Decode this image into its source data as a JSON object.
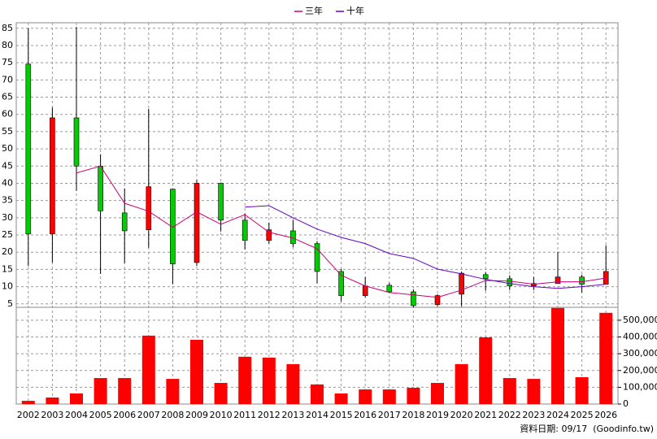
{
  "chart_data": {
    "type": "candlestick",
    "categories": [
      "2002",
      "2003",
      "2004",
      "2005",
      "2006",
      "2007",
      "2008",
      "2009",
      "2010",
      "2011",
      "2012",
      "2013",
      "2014",
      "2015",
      "2016",
      "2017",
      "2018",
      "2019",
      "2020",
      "2021",
      "2022",
      "2023",
      "2024",
      "2025",
      "2026"
    ],
    "open": [
      74.6,
      25.3,
      59,
      45,
      31.4,
      26.5,
      38.3,
      17,
      40,
      29.3,
      23.4,
      26.2,
      22.5,
      14.4,
      7.4,
      10.4,
      8.5,
      4.8,
      7.8,
      13.5,
      12.3,
      10.2,
      10.9,
      12.8,
      10.7
    ],
    "high": [
      85,
      62,
      85.4,
      48.4,
      38.5,
      61.6,
      38.5,
      41,
      40.2,
      31.2,
      28.6,
      29.3,
      23.2,
      15.1,
      12.8,
      11.1,
      9.2,
      7.8,
      14.4,
      14.2,
      13.3,
      12.8,
      20.1,
      13.5,
      22
    ],
    "low": [
      16,
      17,
      37.8,
      13.7,
      16.8,
      21.3,
      10.7,
      16,
      26,
      20.8,
      22.5,
      21.5,
      10.9,
      5.7,
      6.9,
      8.3,
      4,
      4.3,
      4.3,
      8.8,
      9,
      9,
      10.9,
      8.3,
      10.7
    ],
    "close": [
      25.3,
      59,
      45,
      32,
      26.2,
      39,
      16.6,
      40,
      29.3,
      23.4,
      26.5,
      22.5,
      14.4,
      7.4,
      10.2,
      8.5,
      4.5,
      7.4,
      13.9,
      12.3,
      10.2,
      10.9,
      12.8,
      10.7,
      14.4
    ],
    "up_color": "#ff0000",
    "down_color": "#00cc00",
    "series": [
      {
        "name": "三年",
        "color": "#cc0077",
        "values": [
          null,
          null,
          43,
          45,
          34.2,
          31.9,
          27.2,
          31.7,
          28.1,
          30.9,
          25.8,
          24.1,
          21,
          13.3,
          10.2,
          8.3,
          7.6,
          6.9,
          9,
          11.8,
          11.6,
          10.7,
          11.4,
          11.4,
          12.5
        ]
      },
      {
        "name": "十年",
        "color": "#6600cc",
        "values": [
          null,
          null,
          null,
          null,
          null,
          null,
          null,
          null,
          null,
          33.1,
          33.5,
          30,
          26.7,
          24.3,
          22.5,
          19.6,
          18.2,
          15.1,
          13.7,
          12.1,
          10.9,
          10,
          9.5,
          10,
          10.7
        ]
      }
    ],
    "volume": {
      "color": "#ff0000",
      "axis": "y2",
      "values": [
        19000,
        39000,
        63000,
        155000,
        155000,
        408000,
        150000,
        383000,
        126000,
        282000,
        277000,
        238000,
        117000,
        63000,
        87000,
        87000,
        97000,
        126000,
        238000,
        398000,
        155000,
        150000,
        573000,
        160000,
        544000
      ]
    },
    "ylim": [
      4,
      86.6
    ],
    "yticks": [
      5,
      10,
      15,
      20,
      25,
      30,
      35,
      40,
      45,
      50,
      55,
      60,
      65,
      70,
      75,
      80,
      85
    ],
    "y2lim": [
      0,
      577000
    ],
    "y2ticks": [
      0,
      {
        "value": 100000,
        "label": "100,000"
      },
      {
        "value": 200000,
        "label": "200,000"
      },
      {
        "value": 300000,
        "label": "300,000"
      },
      {
        "value": 400000,
        "label": "400,000"
      },
      {
        "value": 500000,
        "label": "500,000"
      }
    ],
    "grid": true,
    "note": "資料日期: 09/17  (Goodinfo.tw)"
  }
}
